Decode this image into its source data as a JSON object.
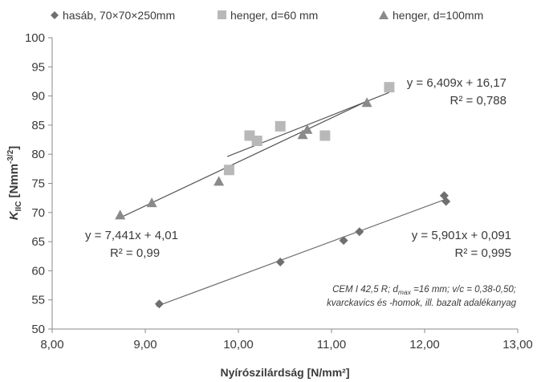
{
  "chart_data": {
    "type": "scatter",
    "xlabel": "Nyírószilárdság [N/mm²]",
    "ylabel": {
      "base": "K",
      "sub": "IIC",
      "unit": " [Nmm",
      "sup": "-3/2",
      "close": "]"
    },
    "xlim": [
      8.0,
      13.0
    ],
    "ylim": [
      50,
      100
    ],
    "x_ticks": [
      "8,00",
      "9,00",
      "10,00",
      "11,00",
      "12,00",
      "13,00"
    ],
    "y_ticks": [
      "50",
      "55",
      "60",
      "65",
      "70",
      "75",
      "80",
      "85",
      "90",
      "95",
      "100"
    ],
    "grid": false,
    "legend_position": "top",
    "series": [
      {
        "name": "hasáb, 70×70×250mm",
        "marker": "diamond",
        "color": "#6f6f6f",
        "points": [
          [
            9.15,
            54.3
          ],
          [
            10.45,
            61.5
          ],
          [
            11.13,
            65.2
          ],
          [
            11.3,
            66.7
          ],
          [
            12.21,
            72.9
          ],
          [
            12.23,
            71.9
          ]
        ],
        "trendline": {
          "x": [
            9.12,
            12.23
          ],
          "y": [
            53.9,
            72.3
          ],
          "color": "#6f6f6f"
        },
        "equation": "y = 5,901x + 0,091",
        "r2": "R² = 0,995"
      },
      {
        "name": "henger, d=60 mm",
        "marker": "square",
        "color": "#b8b8b8",
        "points": [
          [
            9.9,
            77.3
          ],
          [
            10.12,
            83.2
          ],
          [
            10.2,
            82.3
          ],
          [
            10.45,
            84.8
          ],
          [
            10.93,
            83.2
          ],
          [
            11.62,
            91.5
          ]
        ],
        "trendline": {
          "x": [
            9.88,
            11.62
          ],
          "y": [
            79.6,
            90.6
          ],
          "color": "#555555"
        },
        "equation": "y = 6,409x + 16,17",
        "r2": "R² = 0,788"
      },
      {
        "name": "henger, d=100mm",
        "marker": "triangle",
        "color": "#8a8a8a",
        "points": [
          [
            8.73,
            69.5
          ],
          [
            9.07,
            71.6
          ],
          [
            9.79,
            75.3
          ],
          [
            10.69,
            83.3
          ],
          [
            10.74,
            84.2
          ],
          [
            11.38,
            88.8
          ]
        ],
        "trendline": {
          "x": [
            8.73,
            11.38
          ],
          "y": [
            69.1,
            89.1
          ],
          "color": "#555555"
        },
        "equation": "y = 7,441x + 4,01",
        "r2": "R² = 0,99"
      }
    ],
    "annotation": {
      "line1_a": "CEM I 42,5 R; d",
      "line1_sub": "max",
      "line1_b": " =16 mm; v/c = 0,38-0,50;",
      "line2": "kvarckavics és -homok, ill. bazalt adalékanyag"
    }
  }
}
